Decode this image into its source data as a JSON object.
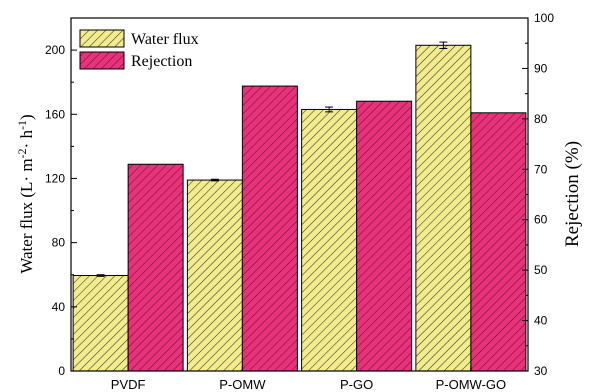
{
  "chart_data": {
    "type": "bar",
    "categories": [
      "PVDF",
      "P-OMW",
      "P-GO",
      "P-OMW-GO"
    ],
    "series": [
      {
        "name": "Water flux",
        "axis": "left",
        "values": [
          59.5,
          119,
          163,
          203
        ],
        "error": [
          0.5,
          0.5,
          1.5,
          2
        ],
        "fill": "#f2ec8c",
        "hatch": "#333333"
      },
      {
        "name": "Rejection",
        "axis": "right",
        "values": [
          71,
          86.5,
          83.5,
          81.2
        ],
        "fill": "#e8327a",
        "hatch": "#6a1038"
      }
    ],
    "ylabel_left": {
      "prefix": "Water flux (L· m",
      "sup1": "-2",
      "mid": "· h",
      "sup2": "-1",
      "suffix": ")"
    },
    "ylabel_right": "Rejection (%)",
    "ylim_left": [
      0,
      220
    ],
    "yticks_left": [
      0,
      40,
      80,
      120,
      160,
      200
    ],
    "ylim_right": [
      30,
      100
    ],
    "yticks_right": [
      30,
      40,
      50,
      60,
      70,
      80,
      90,
      100
    ],
    "legend_position": "top-left",
    "grid": false
  }
}
